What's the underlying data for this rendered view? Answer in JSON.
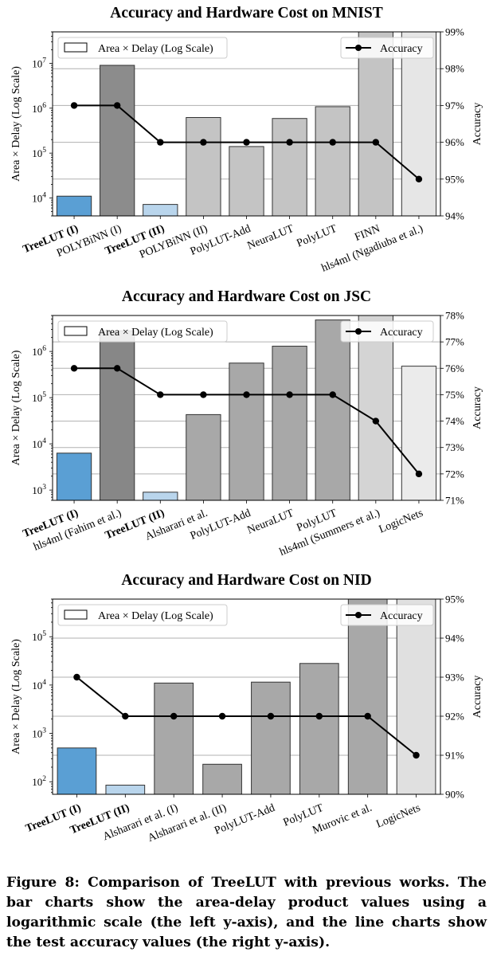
{
  "chart_data": [
    {
      "type": "bar",
      "title": "Accuracy and Hardware Cost on MNIST",
      "ylabel": "Area × Delay (Log Scale)",
      "y2label": "Accuracy",
      "yscale": "log",
      "ylim": [
        4000,
        50000000
      ],
      "y2lim": [
        94,
        99
      ],
      "y2ticks": [
        "94%",
        "95%",
        "96%",
        "97%",
        "98%",
        "99%"
      ],
      "ytick_exponents": [
        4,
        5,
        6,
        7
      ],
      "grid": true,
      "legend_left": "Area × Delay (Log Scale)",
      "legend_right": "Accuracy",
      "legend_placement": "top",
      "categories": [
        "TreeLUT (I)",
        "POLYBiNN (I)",
        "TreeLUT (II)",
        "POLYBiNN (II)",
        "PolyLUT-Add",
        "NeuraLUT",
        "PolyLUT",
        "FINN",
        "hls4ml (Ngadiuba et al.)"
      ],
      "bold": [
        true,
        false,
        true,
        false,
        false,
        false,
        false,
        false,
        false
      ],
      "bar_values": [
        11000,
        9000000,
        7200,
        620000,
        140000,
        590000,
        1080000,
        50000000,
        50000000
      ],
      "bar_colors": [
        "#5a9fd4",
        "#8c8c8c",
        "#b9d5ec",
        "#c4c4c4",
        "#c4c4c4",
        "#c4c4c4",
        "#c4c4c4",
        "#c4c4c4",
        "#e6e6e6"
      ],
      "accuracy_values": [
        97,
        97,
        96,
        96,
        96,
        96,
        96,
        96,
        95
      ]
    },
    {
      "type": "bar",
      "title": "Accuracy and Hardware Cost on JSC",
      "ylabel": "Area × Delay (Log Scale)",
      "y2label": "Accuracy",
      "yscale": "log",
      "ylim": [
        600,
        6000000
      ],
      "y2lim": [
        71,
        78
      ],
      "y2ticks": [
        "71%",
        "72%",
        "73%",
        "74%",
        "75%",
        "76%",
        "77%",
        "78%"
      ],
      "ytick_exponents": [
        3,
        4,
        5,
        6
      ],
      "grid": true,
      "legend_left": "Area × Delay (Log Scale)",
      "legend_right": "Accuracy",
      "legend_placement": "top",
      "categories": [
        "TreeLUT (I)",
        "hls4ml (Fahim et al.)",
        "TreeLUT (II)",
        "Alsharari et al.",
        "PolyLUT-Add",
        "NeuraLUT",
        "PolyLUT",
        "hls4ml (Summers et al.)",
        "LogicNets"
      ],
      "bold": [
        true,
        false,
        true,
        false,
        false,
        false,
        false,
        false,
        false
      ],
      "bar_values": [
        6300,
        2800000,
        900,
        43000,
        560000,
        1300000,
        4800000,
        6000000,
        480000
      ],
      "bar_colors": [
        "#5a9fd4",
        "#878787",
        "#b9d5ec",
        "#a8a8a8",
        "#a8a8a8",
        "#a8a8a8",
        "#a8a8a8",
        "#d4d4d4",
        "#ebebeb"
      ],
      "accuracy_values": [
        76,
        76,
        75,
        75,
        75,
        75,
        75,
        74,
        72
      ]
    },
    {
      "type": "bar",
      "title": "Accuracy and Hardware Cost on NID",
      "ylabel": "Area × Delay (Log Scale)",
      "y2label": "Accuracy",
      "yscale": "log",
      "ylim": [
        55,
        600000
      ],
      "y2lim": [
        90,
        95
      ],
      "y2ticks": [
        "90%",
        "91%",
        "92%",
        "93%",
        "94%",
        "95%"
      ],
      "ytick_exponents": [
        2,
        3,
        4,
        5
      ],
      "grid": true,
      "legend_left": "Area × Delay (Log Scale)",
      "legend_right": "Accuracy",
      "legend_placement": "top",
      "categories": [
        "TreeLUT (I)",
        "TreeLUT (II)",
        "Alsharari et al. (I)",
        "Alsharari et al. (II)",
        "PolyLUT-Add",
        "PolyLUT",
        "Murovic et al.",
        "LogicNets"
      ],
      "bold": [
        true,
        true,
        false,
        false,
        false,
        false,
        false,
        false
      ],
      "bar_values": [
        500,
        85,
        11000,
        230,
        11500,
        28000,
        600000,
        600000
      ],
      "bar_colors": [
        "#5a9fd4",
        "#b9d5ec",
        "#a8a8a8",
        "#a8a8a8",
        "#a8a8a8",
        "#a8a8a8",
        "#a8a8a8",
        "#e0e0e0"
      ],
      "accuracy_values": [
        93,
        92,
        92,
        92,
        92,
        92,
        92,
        91
      ]
    }
  ],
  "caption": "Figure 8: Comparison of TreeLUT with previous works. The bar charts show the area-delay product values using a logarithmic scale (the left y-axis), and the line charts show the test accuracy values (the right y-axis)."
}
